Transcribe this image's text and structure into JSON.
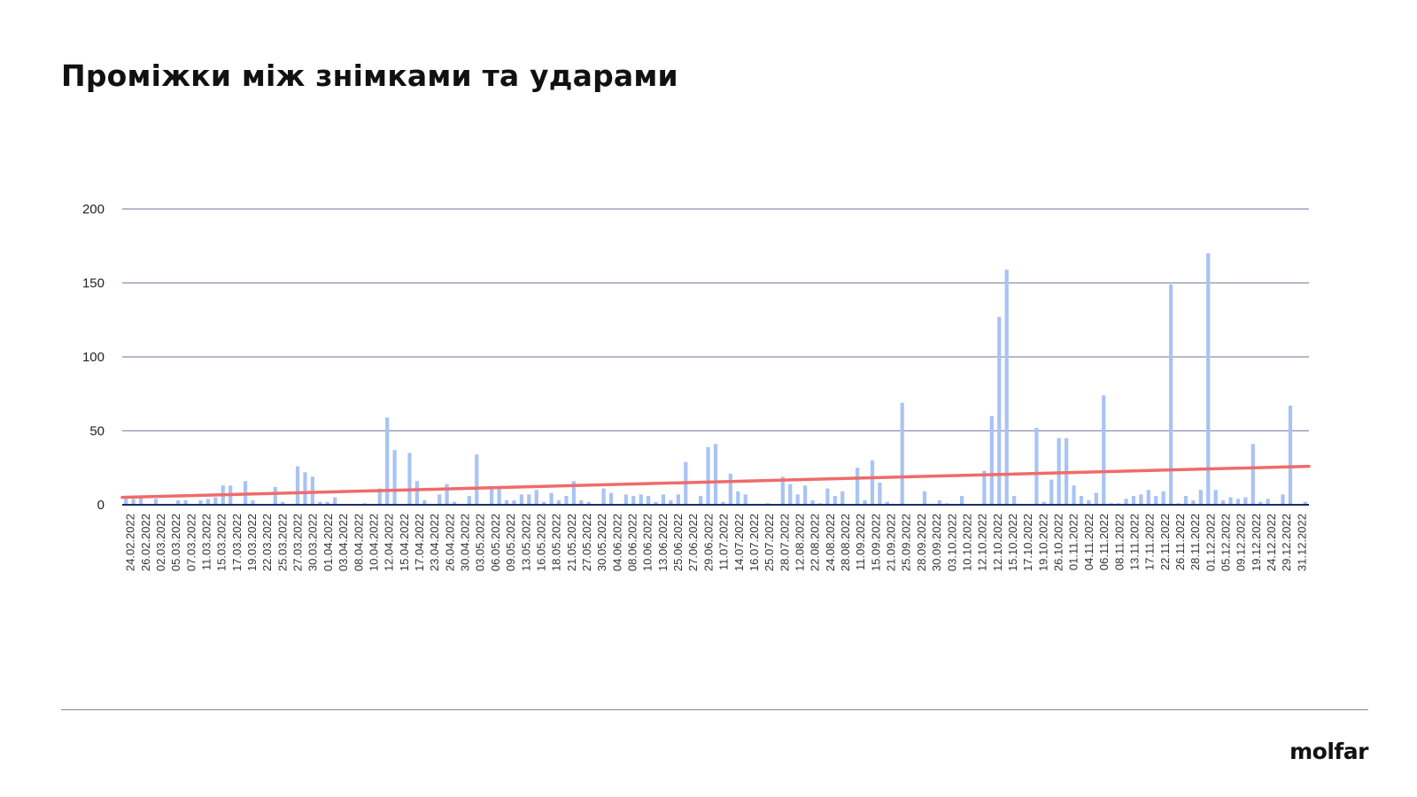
{
  "title": "Проміжки між знімками та ударами",
  "logo": "molfar",
  "colors": {
    "bar": "#a8c3f5",
    "trend": "#ef6b6b",
    "grid": "#8a8fb0",
    "axis": "#1b2a6b"
  },
  "chart_data": {
    "type": "bar",
    "title": "",
    "xlabel": "",
    "ylabel": "",
    "ylim": [
      0,
      200
    ],
    "yticks": [
      0,
      50,
      100,
      150,
      200
    ],
    "grid": true,
    "trendline": {
      "type": "linear",
      "start": 5,
      "end": 26
    },
    "x_tick_labels": [
      "24.02.2022",
      "26.02.2022",
      "02.03.2022",
      "05.03.2022",
      "07.03.2022",
      "11.03.2022",
      "15.03.2022",
      "17.03.2022",
      "19.03.2022",
      "22.03.2022",
      "25.03.2022",
      "27.03.2022",
      "30.03.2022",
      "01.04.2022",
      "03.04.2022",
      "08.04.2022",
      "10.04.2022",
      "12.04.2022",
      "15.04.2022",
      "17.04.2022",
      "23.04.2022",
      "26.04.2022",
      "30.04.2022",
      "03.05.2022",
      "06.05.2022",
      "09.05.2022",
      "13.05.2022",
      "16.05.2022",
      "18.05.2022",
      "21.05.2022",
      "27.05.2022",
      "30.05.2022",
      "04.06.2022",
      "08.06.2022",
      "10.06.2022",
      "13.06.2022",
      "25.06.2022",
      "27.06.2022",
      "29.06.2022",
      "11.07.2022",
      "14.07.2022",
      "16.07.2022",
      "25.07.2022",
      "28.07.2022",
      "12.08.2022",
      "22.08.2022",
      "24.08.2022",
      "28.08.2022",
      "11.09.2022",
      "15.09.2022",
      "21.09.2022",
      "25.09.2022",
      "28.09.2022",
      "30.09.2022",
      "03.10.2022",
      "10.10.2022",
      "12.10.2022",
      "12.10.2022",
      "15.10.2022",
      "17.10.2022",
      "19.10.2022",
      "26.10.2022",
      "01.11.2022",
      "04.11.2022",
      "06.11.2022",
      "08.11.2022",
      "13.11.2022",
      "17.11.2022",
      "22.11.2022",
      "26.11.2022",
      "28.11.2022",
      "01.12.2022",
      "05.12.2022",
      "09.12.2022",
      "19.12.2022",
      "24.12.2022",
      "29.12.2022",
      "31.12.2022"
    ],
    "values": [
      4,
      4,
      5,
      0,
      4,
      0,
      0,
      3,
      3,
      0,
      3,
      4,
      5,
      13,
      13,
      0,
      16,
      3,
      0,
      0,
      12,
      2,
      0,
      26,
      22,
      19,
      2,
      2,
      5,
      0,
      0,
      0,
      1,
      0,
      11,
      59,
      37,
      0,
      35,
      16,
      3,
      0,
      7,
      14,
      2,
      0,
      6,
      34,
      0,
      12,
      11,
      3,
      3,
      7,
      7,
      10,
      2,
      8,
      3,
      6,
      16,
      3,
      2,
      0,
      11,
      8,
      0,
      7,
      6,
      7,
      6,
      2,
      7,
      3,
      7,
      29,
      0,
      6,
      39,
      41,
      2,
      21,
      9,
      7,
      0,
      0,
      1,
      0,
      19,
      14,
      7,
      13,
      3,
      1,
      11,
      6,
      9,
      0,
      25,
      3,
      30,
      15,
      2,
      0,
      69,
      0,
      0,
      9,
      0,
      3,
      1,
      0,
      6,
      0,
      0,
      23,
      60,
      127,
      159,
      6,
      0,
      0,
      52,
      2,
      17,
      45,
      45,
      13,
      6,
      3,
      8,
      74,
      1,
      1,
      4,
      6,
      7,
      10,
      6,
      9,
      149,
      1,
      6,
      3,
      10,
      170,
      10,
      3,
      5,
      4,
      5,
      41,
      2,
      4,
      0,
      7,
      67,
      0,
      2
    ]
  }
}
